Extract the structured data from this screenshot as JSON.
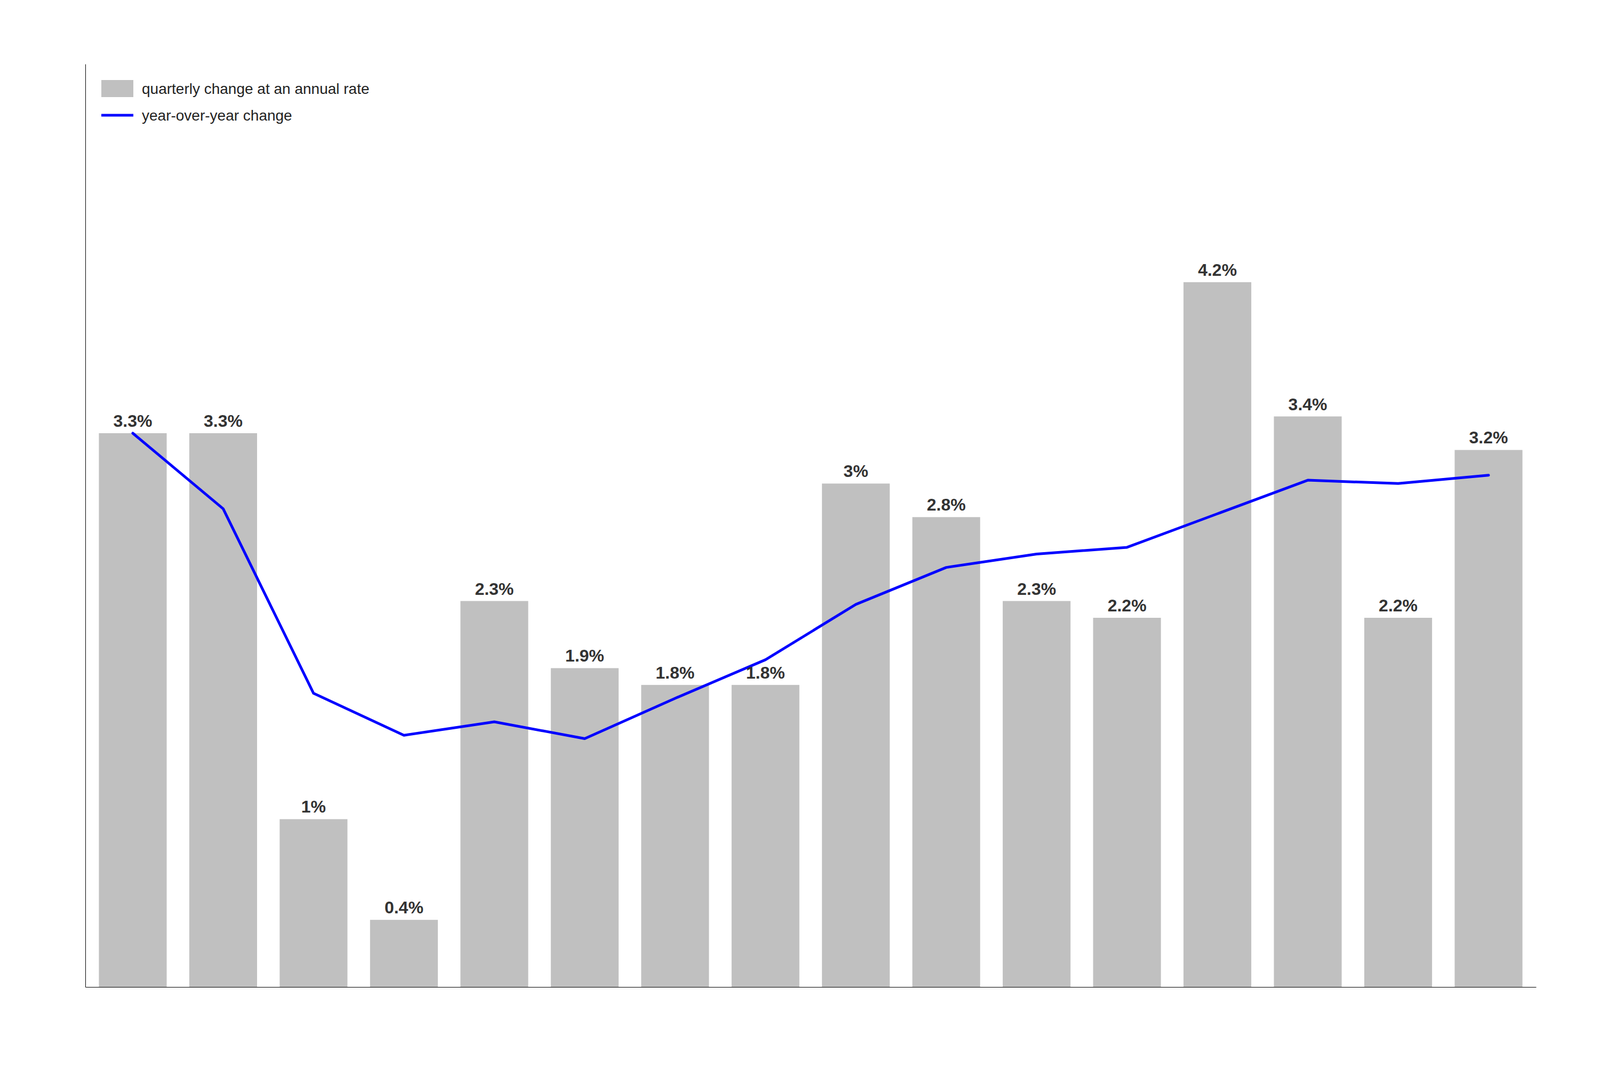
{
  "chart_data": {
    "type": "bar",
    "categories": [
      null,
      null,
      null,
      null,
      null,
      null,
      null,
      null,
      null,
      null,
      null,
      null,
      null,
      null,
      null,
      null
    ],
    "series": [
      {
        "name": "quarterly change at an annual rate",
        "type": "bar",
        "color": "#C0C0C0",
        "values": [
          3.3,
          3.3,
          1.0,
          0.4,
          2.3,
          1.9,
          1.8,
          1.8,
          3.0,
          2.8,
          2.3,
          2.2,
          4.2,
          3.4,
          2.2,
          3.2
        ],
        "value_labels": [
          "3.3%",
          "3.3%",
          "1%",
          "0.4%",
          "2.3%",
          "1.9%",
          "1.8%",
          "1.8%",
          "3%",
          "2.8%",
          "2.3%",
          "2.2%",
          "4.2%",
          "3.4%",
          "2.2%",
          "3.2%"
        ]
      },
      {
        "name": "year-over-year change",
        "type": "line",
        "color": "#0000FF",
        "values": [
          3.3,
          2.85,
          1.75,
          1.5,
          1.58,
          1.48,
          1.72,
          1.95,
          2.28,
          2.5,
          2.58,
          2.62,
          2.82,
          3.02,
          3.0,
          3.05
        ]
      }
    ],
    "ylim": [
      0,
      5.5
    ],
    "data_labels": true,
    "tick_labels": false,
    "legend": "upper left"
  }
}
